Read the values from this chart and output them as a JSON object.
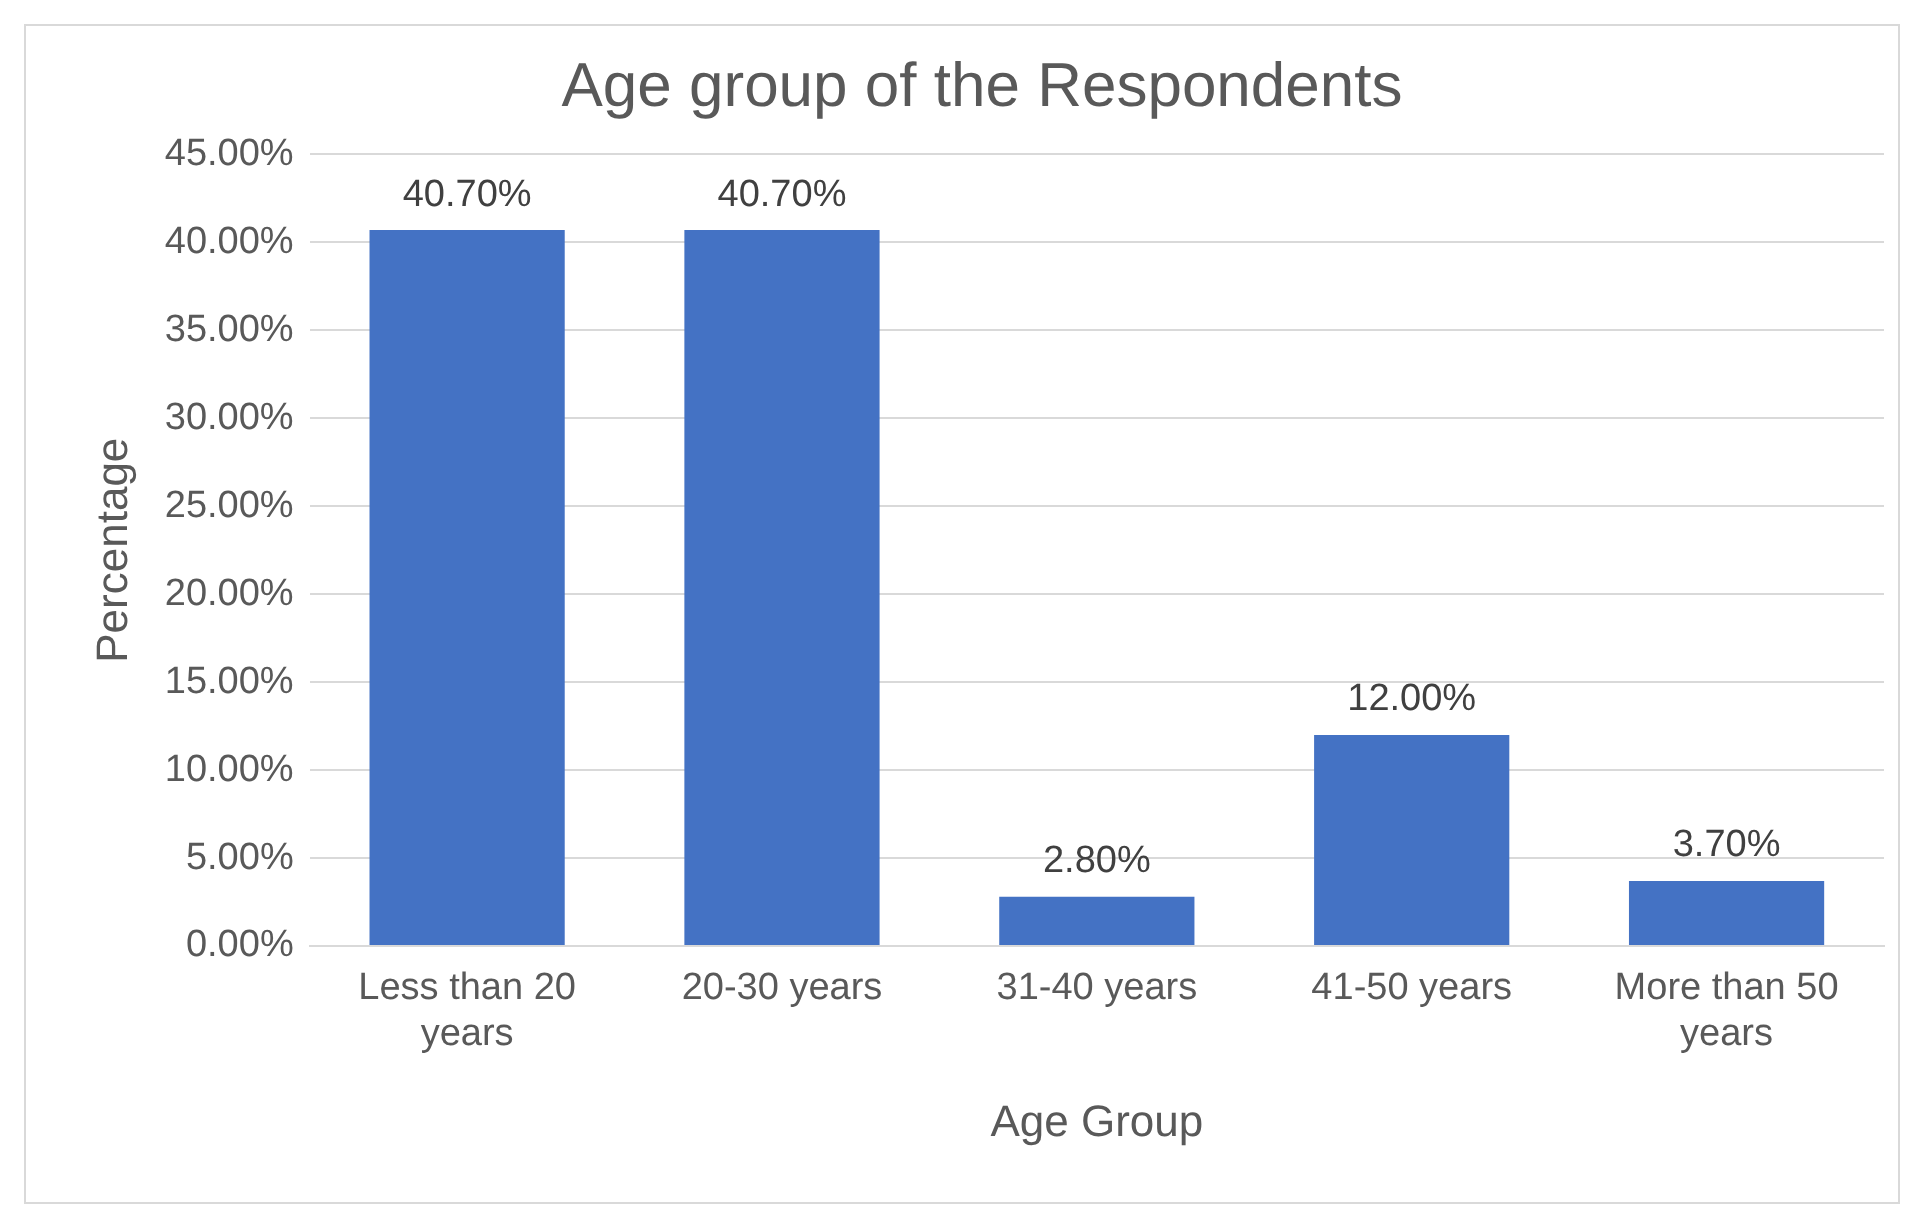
{
  "chart_data": {
    "type": "bar",
    "title": "Age group of the Respondents",
    "xlabel": "Age Group",
    "ylabel": "Percentage",
    "categories": [
      "Less than 20 years",
      "20-30 years",
      "31-40 years",
      "41-50 years",
      "More than 50 years"
    ],
    "values": [
      40.7,
      40.7,
      2.8,
      12.0,
      3.7
    ],
    "value_labels": [
      "40.70%",
      "40.70%",
      "2.80%",
      "12.00%",
      "3.70%"
    ],
    "color": "#4472c4",
    "ylim": [
      0,
      45
    ],
    "yticks": [
      {
        "value": 0,
        "label": "0.00%"
      },
      {
        "value": 5,
        "label": "5.00%"
      },
      {
        "value": 10,
        "label": "10.00%"
      },
      {
        "value": 15,
        "label": "15.00%"
      },
      {
        "value": 20,
        "label": "20.00%"
      },
      {
        "value": 25,
        "label": "25.00%"
      },
      {
        "value": 30,
        "label": "30.00%"
      },
      {
        "value": 35,
        "label": "35.00%"
      },
      {
        "value": 40,
        "label": "40.00%"
      },
      {
        "value": 45,
        "label": "45.00%"
      }
    ],
    "grid": "y",
    "legend": false
  }
}
